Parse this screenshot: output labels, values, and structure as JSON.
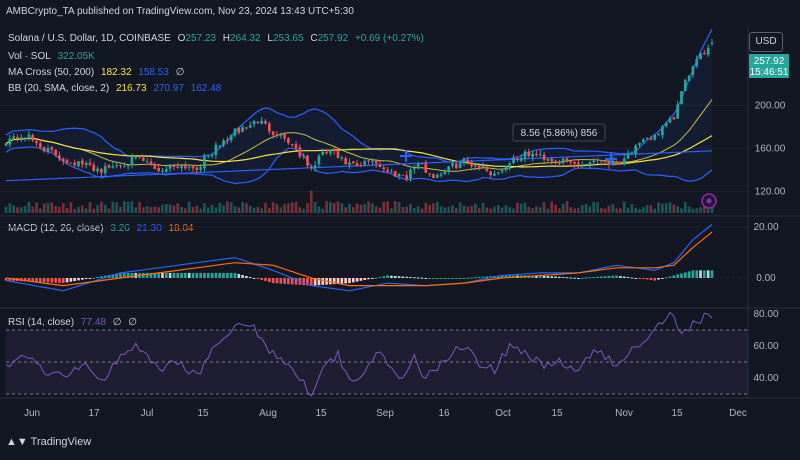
{
  "header": {
    "publish_line": "AMBCrypto_TA published on TradingView.com, Nov 23, 2024 13:43 UTC+5:30"
  },
  "currency": "USD",
  "symbol": {
    "title": "Solana / U.S. Dollar, 1D, COINBASE",
    "open_label": "O",
    "open": "257.23",
    "high_label": "H",
    "high": "264.32",
    "low_label": "L",
    "low": "253.65",
    "close_label": "C",
    "close": "257.92",
    "change": "+0.69 (+0.27%)"
  },
  "indicators": {
    "vol": {
      "label": "Vol · SOL",
      "value": "322.05K"
    },
    "ma_cross": {
      "label": "MA Cross (50, 200)",
      "v1": "182.32",
      "v2": "158.53",
      "extra": "∅"
    },
    "bb": {
      "label": "BB (20, SMA, close, 2)",
      "v1": "216.73",
      "v2": "270.97",
      "v3": "162.48"
    },
    "macd": {
      "label": "MACD (12, 26, close)",
      "v1": "3.26",
      "v2": "21.30",
      "v3": "18.04"
    },
    "rsi": {
      "label": "RSI (14, close)",
      "v1": "77.48",
      "v2": "∅",
      "v3": "∅"
    }
  },
  "measure_label": "8.56 (5.86%) 856",
  "price_tags": {
    "last": "257.92",
    "countdown": "15:46:51"
  },
  "footer": {
    "brand": "TradingView"
  },
  "colors": {
    "up": "#26a69a",
    "down": "#ef5350",
    "bb": "#2962ff",
    "ma50": "#f5e642",
    "ma200": "#2962ff",
    "macd": "#2962ff",
    "signal": "#ff6d00",
    "rsi": "#7e57c2"
  },
  "chart_data": [
    {
      "type": "candlestick",
      "title": "Solana / U.S. Dollar, 1D, COINBASE",
      "x_ticks": [
        "Jun",
        "17",
        "Jul",
        "15",
        "Aug",
        "15",
        "Sep",
        "16",
        "Oct",
        "15",
        "Nov",
        "15",
        "Dec"
      ],
      "y_ticks": [
        120,
        160,
        200
      ],
      "ylim": [
        100,
        270
      ],
      "close_path": [
        [
          0,
          168
        ],
        [
          5,
          172
        ],
        [
          10,
          160
        ],
        [
          15,
          150
        ],
        [
          20,
          145
        ],
        [
          25,
          140
        ],
        [
          30,
          146
        ],
        [
          35,
          150
        ],
        [
          40,
          140
        ],
        [
          45,
          145
        ],
        [
          50,
          142
        ],
        [
          55,
          160
        ],
        [
          60,
          175
        ],
        [
          63,
          180
        ],
        [
          66,
          186
        ],
        [
          70,
          176
        ],
        [
          73,
          170
        ],
        [
          76,
          160
        ],
        [
          78,
          150
        ],
        [
          80,
          140
        ],
        [
          82,
          152
        ],
        [
          85,
          158
        ],
        [
          88,
          148
        ],
        [
          92,
          142
        ],
        [
          96,
          150
        ],
        [
          100,
          138
        ],
        [
          105,
          135
        ],
        [
          108,
          146
        ],
        [
          112,
          134
        ],
        [
          116,
          142
        ],
        [
          120,
          148
        ],
        [
          124,
          144
        ],
        [
          128,
          136
        ],
        [
          133,
          150
        ],
        [
          137,
          155
        ],
        [
          141,
          152
        ],
        [
          145,
          148
        ],
        [
          150,
          145
        ],
        [
          155,
          150
        ],
        [
          160,
          146
        ],
        [
          165,
          160
        ],
        [
          169,
          170
        ],
        [
          172,
          178
        ],
        [
          175,
          188
        ],
        [
          177,
          212
        ],
        [
          179,
          230
        ],
        [
          181,
          240
        ],
        [
          183,
          250
        ],
        [
          185,
          258
        ]
      ],
      "series": [
        {
          "name": "MA Cross 50",
          "value": 182.32
        },
        {
          "name": "MA Cross 200",
          "value": 158.53
        },
        {
          "name": "BB basis",
          "value": 216.73
        },
        {
          "name": "BB upper",
          "value": 270.97
        },
        {
          "name": "BB lower",
          "value": 162.48
        }
      ],
      "last": {
        "open": 257.23,
        "high": 264.32,
        "low": 253.65,
        "close": 257.92,
        "change": 0.69,
        "change_pct": 0.27
      }
    },
    {
      "type": "bar",
      "title": "Vol · SOL",
      "last_value": "322.05K"
    },
    {
      "type": "line",
      "title": "MACD (12, 26, close)",
      "y_ticks": [
        0,
        20
      ],
      "ylim": [
        -10,
        24
      ],
      "macd_path": [
        [
          0,
          -1
        ],
        [
          15,
          -5
        ],
        [
          30,
          2
        ],
        [
          45,
          5
        ],
        [
          60,
          8
        ],
        [
          70,
          3
        ],
        [
          80,
          -3
        ],
        [
          90,
          -5
        ],
        [
          100,
          -2
        ],
        [
          110,
          -3
        ],
        [
          120,
          -2
        ],
        [
          130,
          1
        ],
        [
          140,
          2
        ],
        [
          150,
          2
        ],
        [
          160,
          5
        ],
        [
          170,
          3
        ],
        [
          175,
          6
        ],
        [
          180,
          15
        ],
        [
          185,
          21
        ]
      ],
      "signal_path": [
        [
          0,
          0
        ],
        [
          15,
          -3
        ],
        [
          30,
          0
        ],
        [
          45,
          3
        ],
        [
          60,
          6
        ],
        [
          70,
          5
        ],
        [
          80,
          0
        ],
        [
          90,
          -3
        ],
        [
          100,
          -3
        ],
        [
          110,
          -3
        ],
        [
          120,
          -2
        ],
        [
          130,
          0
        ],
        [
          140,
          1
        ],
        [
          150,
          2
        ],
        [
          160,
          4
        ],
        [
          170,
          4
        ],
        [
          175,
          5
        ],
        [
          180,
          12
        ],
        [
          185,
          18
        ]
      ],
      "values": {
        "histogram": 3.26,
        "macd": 21.3,
        "signal": 18.04
      }
    },
    {
      "type": "line",
      "title": "RSI (14, close)",
      "y_ticks": [
        40,
        60,
        80
      ],
      "ylim": [
        28,
        85
      ],
      "rsi_path": [
        [
          0,
          48
        ],
        [
          5,
          55
        ],
        [
          10,
          45
        ],
        [
          15,
          40
        ],
        [
          20,
          50
        ],
        [
          25,
          38
        ],
        [
          30,
          55
        ],
        [
          35,
          60
        ],
        [
          40,
          45
        ],
        [
          45,
          50
        ],
        [
          50,
          42
        ],
        [
          55,
          60
        ],
        [
          60,
          70
        ],
        [
          63,
          75
        ],
        [
          66,
          68
        ],
        [
          70,
          55
        ],
        [
          74,
          50
        ],
        [
          77,
          40
        ],
        [
          80,
          30
        ],
        [
          83,
          48
        ],
        [
          87,
          55
        ],
        [
          90,
          40
        ],
        [
          94,
          42
        ],
        [
          98,
          58
        ],
        [
          101,
          45
        ],
        [
          104,
          38
        ],
        [
          107,
          52
        ],
        [
          110,
          40
        ],
        [
          114,
          48
        ],
        [
          118,
          58
        ],
        [
          121,
          62
        ],
        [
          124,
          50
        ],
        [
          128,
          45
        ],
        [
          132,
          60
        ],
        [
          136,
          57
        ],
        [
          140,
          48
        ],
        [
          145,
          50
        ],
        [
          150,
          45
        ],
        [
          155,
          58
        ],
        [
          160,
          46
        ],
        [
          164,
          60
        ],
        [
          168,
          65
        ],
        [
          171,
          75
        ],
        [
          174,
          80
        ],
        [
          177,
          70
        ],
        [
          180,
          73
        ],
        [
          183,
          78
        ],
        [
          185,
          77.48
        ]
      ],
      "value": 77.48
    }
  ]
}
